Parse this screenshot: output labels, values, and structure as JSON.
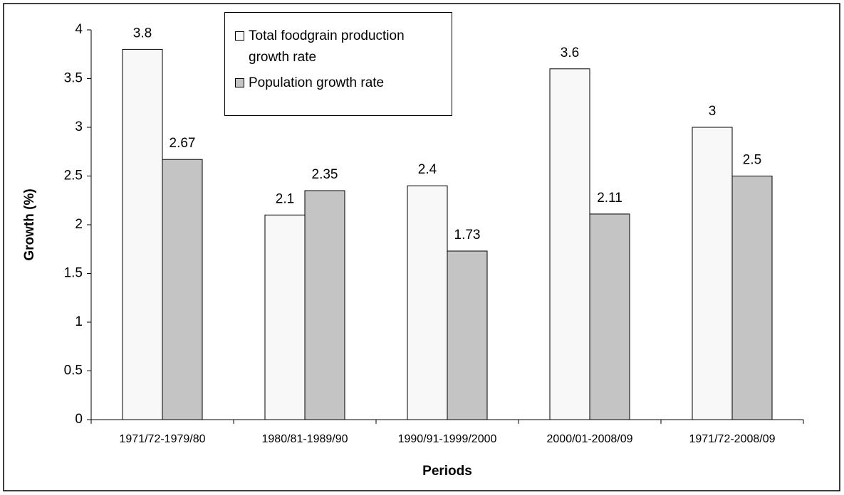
{
  "chart_data": {
    "type": "bar",
    "x_label": "Periods",
    "y_label": "Growth (%)",
    "categories": [
      "1971/72-1979/80",
      "1980/81-1989/90",
      "1990/91-1999/2000",
      "2000/01-2008/09",
      "1971/72-2008/09"
    ],
    "series": [
      {
        "name": "Total foodgrain production growth rate",
        "color": "#f8f8f8",
        "values": [
          3.8,
          2.1,
          2.4,
          3.6,
          3
        ]
      },
      {
        "name": "Population growth rate",
        "color": "#c4c4c4",
        "values": [
          2.67,
          2.35,
          1.73,
          2.11,
          2.5
        ]
      }
    ],
    "ylim": [
      0,
      4
    ],
    "yticks": [
      0,
      0.5,
      1,
      1.5,
      2,
      2.5,
      3,
      3.5,
      4
    ],
    "legend": "top-center"
  }
}
